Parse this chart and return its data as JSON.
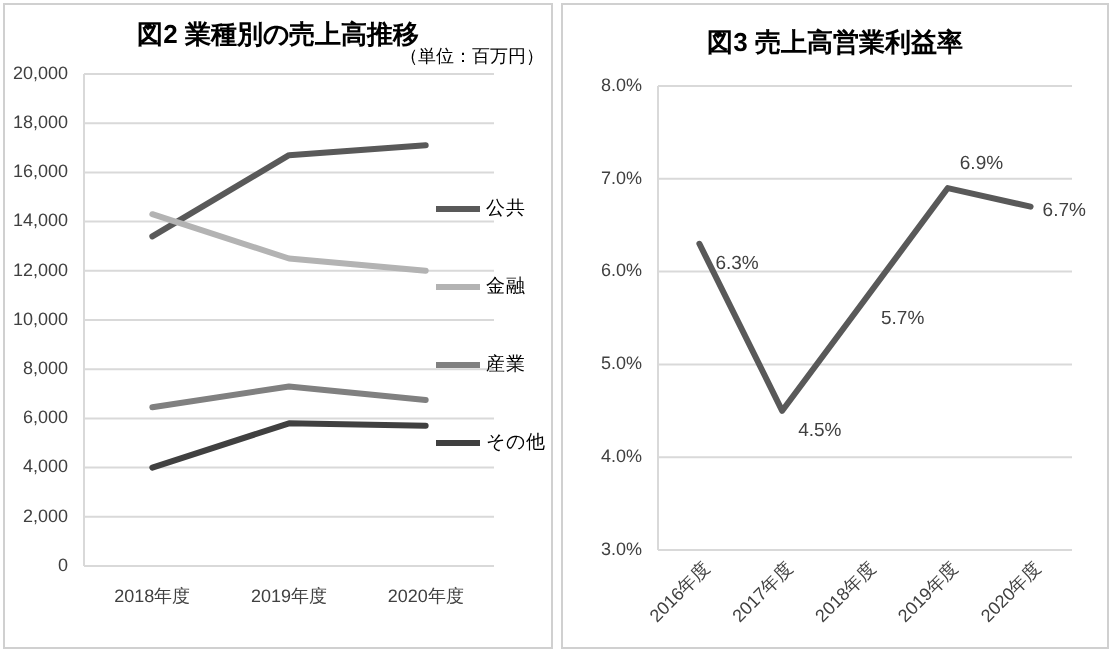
{
  "chart_data": [
    {
      "type": "line",
      "title": "図2 業種別の売上高推移",
      "subtitle": "（単位：百万円）",
      "categories": [
        "2018年度",
        "2019年度",
        "2020年度"
      ],
      "series": [
        {
          "name": "公共",
          "color": "#595959",
          "values": [
            13400,
            16700,
            17100
          ]
        },
        {
          "name": "金融",
          "color": "#b3b3b3",
          "values": [
            14300,
            12500,
            12000
          ]
        },
        {
          "name": "産業",
          "color": "#808080",
          "values": [
            6450,
            7300,
            6750
          ]
        },
        {
          "name": "その他",
          "color": "#404040",
          "values": [
            4000,
            5800,
            5700
          ]
        }
      ],
      "ylim": [
        0,
        20000
      ],
      "yticks": [
        0,
        {
          "value": 2000,
          "label": "2,000"
        },
        {
          "value": 4000,
          "label": "4,000"
        },
        {
          "value": 6000,
          "label": "6,000"
        },
        {
          "value": 8000,
          "label": "8,000"
        },
        {
          "value": 10000,
          "label": "10,000"
        },
        {
          "value": 12000,
          "label": "12,000"
        },
        {
          "value": 14000,
          "label": "14,000"
        },
        {
          "value": 16000,
          "label": "16,000"
        },
        {
          "value": 18000,
          "label": "18,000"
        },
        {
          "value": 20000,
          "label": "20,000"
        }
      ],
      "grid": "y",
      "legend": "right"
    },
    {
      "type": "line",
      "title": "図3 売上高営業利益率",
      "categories": [
        "2016年度",
        "2017年度",
        "2018年度",
        "2019年度",
        "2020年度"
      ],
      "series": [
        {
          "color": "#595959",
          "values": [
            6.3,
            4.5,
            5.7,
            6.9,
            6.7
          ],
          "value_labels": [
            "6.3%",
            "4.5%",
            "5.7%",
            "6.9%",
            "6.7%"
          ]
        }
      ],
      "ylim": [
        3,
        8
      ],
      "yticks": [
        {
          "value": 3,
          "label": "3.0%"
        },
        {
          "value": 4,
          "label": "4.0%"
        },
        {
          "value": 5,
          "label": "5.0%"
        },
        {
          "value": 6,
          "label": "6.0%"
        },
        {
          "value": 7,
          "label": "7.0%"
        },
        {
          "value": 8,
          "label": "8.0%"
        }
      ],
      "grid": "y"
    }
  ]
}
